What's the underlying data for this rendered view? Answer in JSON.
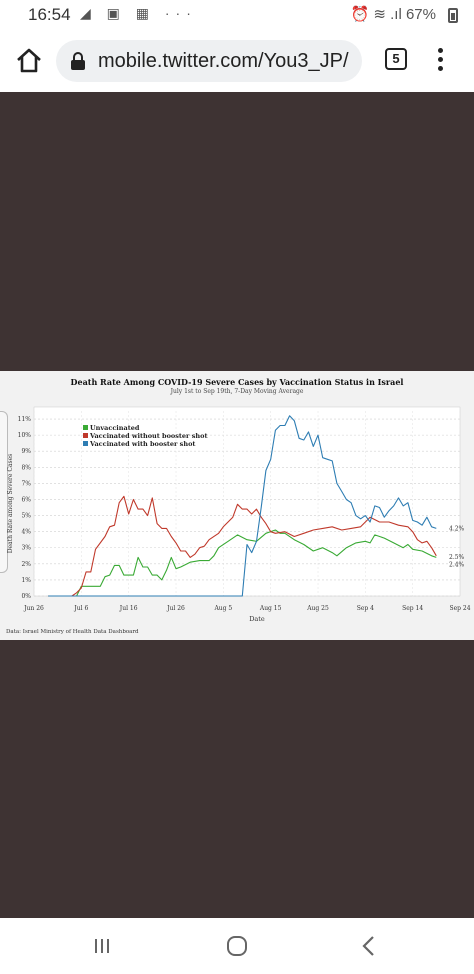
{
  "status_bar": {
    "time": "16:54",
    "left_icons": "◢ ▣ ▦ ···",
    "right_indicators": "⏰ ≋ .ıl",
    "battery": "67%"
  },
  "browser": {
    "url": "mobile.twitter.com/You3_JP/",
    "tab_count": "5"
  },
  "tweet_image": {
    "chart_data": {
      "type": "line",
      "title": "Death Rate Among COVID-19 Severe Cases by Vaccination Status in Israel",
      "subtitle": "July 1st to Sep 19th, 7-Day Moving Average",
      "xlabel": "Date",
      "ylabel": "Death Rate among Severe Cases",
      "source": "Data: Israel Ministry of Health Data Dashboard",
      "x_ticks": [
        "Jun 26",
        "Jul 6",
        "Jul 16",
        "Jul 26",
        "Aug 5",
        "Aug 15",
        "Aug 25",
        "Sep 4",
        "Sep 14",
        "Sep 24"
      ],
      "y_ticks": [
        "0%",
        "1%",
        "2%",
        "3%",
        "4%",
        "5%",
        "6%",
        "7%",
        "8%",
        "9%",
        "10%",
        "11%"
      ],
      "ylim": [
        0,
        11.5
      ],
      "x_start": "Jun 26",
      "legend_position": "top-left",
      "end_labels": [
        "4.2%",
        "2.5%",
        "2.4%"
      ],
      "series": [
        {
          "name": "Unvaccinated",
          "color": "#3aaa35",
          "points": [
            [
              "Jun 29",
              0
            ],
            [
              "Jul 1",
              0
            ],
            [
              "Jul 3",
              0
            ],
            [
              "Jul 5",
              0
            ],
            [
              "Jul 6",
              0.6
            ],
            [
              "Jul 8",
              0.6
            ],
            [
              "Jul 10",
              0.6
            ],
            [
              "Jul 11",
              1.2
            ],
            [
              "Jul 12",
              1.3
            ],
            [
              "Jul 13",
              1.9
            ],
            [
              "Jul 14",
              1.9
            ],
            [
              "Jul 15",
              1.3
            ],
            [
              "Jul 17",
              1.3
            ],
            [
              "Jul 18",
              2.4
            ],
            [
              "Jul 19",
              1.8
            ],
            [
              "Jul 20",
              1.8
            ],
            [
              "Jul 21",
              1.3
            ],
            [
              "Jul 22",
              1.3
            ],
            [
              "Jul 23",
              1.0
            ],
            [
              "Jul 24",
              1.6
            ],
            [
              "Jul 25",
              2.4
            ],
            [
              "Jul 26",
              1.7
            ],
            [
              "Jul 27",
              1.8
            ],
            [
              "Jul 29",
              2.1
            ],
            [
              "Jul 31",
              2.2
            ],
            [
              "Aug 2",
              2.2
            ],
            [
              "Aug 3",
              2.5
            ],
            [
              "Aug 4",
              3.0
            ],
            [
              "Aug 6",
              3.4
            ],
            [
              "Aug 8",
              3.8
            ],
            [
              "Aug 10",
              3.5
            ],
            [
              "Aug 12",
              3.4
            ],
            [
              "Aug 14",
              3.9
            ],
            [
              "Aug 16",
              4.1
            ],
            [
              "Aug 17",
              3.9
            ],
            [
              "Aug 18",
              3.9
            ],
            [
              "Aug 20",
              3.5
            ],
            [
              "Aug 22",
              3.2
            ],
            [
              "Aug 24",
              2.8
            ],
            [
              "Aug 26",
              3.0
            ],
            [
              "Aug 28",
              2.7
            ],
            [
              "Aug 29",
              2.5
            ],
            [
              "Aug 31",
              3.0
            ],
            [
              "Sep 2",
              3.3
            ],
            [
              "Sep 4",
              3.4
            ],
            [
              "Sep 5",
              3.3
            ],
            [
              "Sep 6",
              3.8
            ],
            [
              "Sep 8",
              3.6
            ],
            [
              "Sep 10",
              3.3
            ],
            [
              "Sep 12",
              3.0
            ],
            [
              "Sep 13",
              3.2
            ],
            [
              "Sep 14",
              2.9
            ],
            [
              "Sep 16",
              2.8
            ],
            [
              "Sep 18",
              2.5
            ],
            [
              "Sep 19",
              2.4
            ]
          ]
        },
        {
          "name": "Vaccinated without booster shot",
          "color": "#c0392b",
          "points": [
            [
              "Jun 29",
              0
            ],
            [
              "Jul 1",
              0
            ],
            [
              "Jul 3",
              0
            ],
            [
              "Jul 4",
              0
            ],
            [
              "Jul 5",
              0.2
            ],
            [
              "Jul 6",
              0.5
            ],
            [
              "Jul 7",
              1.5
            ],
            [
              "Jul 8",
              1.5
            ],
            [
              "Jul 9",
              2.9
            ],
            [
              "Jul 11",
              3.7
            ],
            [
              "Jul 12",
              4.3
            ],
            [
              "Jul 13",
              4.4
            ],
            [
              "Jul 14",
              5.8
            ],
            [
              "Jul 15",
              6.2
            ],
            [
              "Jul 16",
              5.1
            ],
            [
              "Jul 17",
              6.0
            ],
            [
              "Jul 18",
              5.4
            ],
            [
              "Jul 19",
              5.4
            ],
            [
              "Jul 20",
              5.0
            ],
            [
              "Jul 21",
              6.1
            ],
            [
              "Jul 22",
              4.5
            ],
            [
              "Jul 23",
              4.2
            ],
            [
              "Jul 24",
              4.2
            ],
            [
              "Jul 25",
              3.7
            ],
            [
              "Jul 26",
              3.3
            ],
            [
              "Jul 27",
              2.8
            ],
            [
              "Jul 28",
              2.8
            ],
            [
              "Jul 29",
              2.4
            ],
            [
              "Jul 30",
              2.6
            ],
            [
              "Jul 31",
              3.0
            ],
            [
              "Aug 1",
              3.1
            ],
            [
              "Aug 2",
              3.5
            ],
            [
              "Aug 4",
              3.9
            ],
            [
              "Aug 5",
              4.3
            ],
            [
              "Aug 7",
              4.9
            ],
            [
              "Aug 8",
              5.7
            ],
            [
              "Aug 9",
              5.4
            ],
            [
              "Aug 10",
              5.4
            ],
            [
              "Aug 11",
              5.1
            ],
            [
              "Aug 12",
              5.4
            ],
            [
              "Aug 13",
              4.9
            ],
            [
              "Aug 14",
              4.5
            ],
            [
              "Aug 15",
              4.0
            ],
            [
              "Aug 16",
              3.9
            ],
            [
              "Aug 18",
              4.0
            ],
            [
              "Aug 20",
              3.7
            ],
            [
              "Aug 22",
              3.9
            ],
            [
              "Aug 24",
              4.1
            ],
            [
              "Aug 26",
              4.2
            ],
            [
              "Aug 28",
              4.3
            ],
            [
              "Aug 30",
              4.1
            ],
            [
              "Sep 1",
              4.2
            ],
            [
              "Sep 3",
              4.3
            ],
            [
              "Sep 5",
              4.9
            ],
            [
              "Sep 7",
              4.6
            ],
            [
              "Sep 9",
              4.6
            ],
            [
              "Sep 11",
              4.4
            ],
            [
              "Sep 13",
              4.3
            ],
            [
              "Sep 14",
              4.0
            ],
            [
              "Sep 15",
              3.5
            ],
            [
              "Sep 16",
              3.3
            ],
            [
              "Sep 17",
              3.4
            ],
            [
              "Sep 18",
              3.0
            ],
            [
              "Sep 19",
              2.5
            ]
          ]
        },
        {
          "name": "Vaccinated with booster shot",
          "color": "#2e7db3",
          "points": [
            [
              "Jun 29",
              0
            ],
            [
              "Jul 5",
              0
            ],
            [
              "Jul 15",
              0
            ],
            [
              "Jul 25",
              0
            ],
            [
              "Aug 4",
              0
            ],
            [
              "Aug 9",
              0
            ],
            [
              "Aug 10",
              3.2
            ],
            [
              "Aug 11",
              2.7
            ],
            [
              "Aug 12",
              3.4
            ],
            [
              "Aug 13",
              5.5
            ],
            [
              "Aug 14",
              7.8
            ],
            [
              "Aug 15",
              8.5
            ],
            [
              "Aug 16",
              10.3
            ],
            [
              "Aug 17",
              10.6
            ],
            [
              "Aug 18",
              10.6
            ],
            [
              "Aug 19",
              11.2
            ],
            [
              "Aug 20",
              10.9
            ],
            [
              "Aug 21",
              9.8
            ],
            [
              "Aug 22",
              9.7
            ],
            [
              "Aug 23",
              10.2
            ],
            [
              "Aug 24",
              9.3
            ],
            [
              "Aug 25",
              10.0
            ],
            [
              "Aug 26",
              8.6
            ],
            [
              "Aug 27",
              8.5
            ],
            [
              "Aug 28",
              8.4
            ],
            [
              "Aug 29",
              7.0
            ],
            [
              "Aug 30",
              6.5
            ],
            [
              "Aug 31",
              6.0
            ],
            [
              "Sep 1",
              5.8
            ],
            [
              "Sep 2",
              5.0
            ],
            [
              "Sep 3",
              4.8
            ],
            [
              "Sep 4",
              5.0
            ],
            [
              "Sep 5",
              4.6
            ],
            [
              "Sep 6",
              5.6
            ],
            [
              "Sep 7",
              5.5
            ],
            [
              "Sep 8",
              4.9
            ],
            [
              "Sep 9",
              5.3
            ],
            [
              "Sep 10",
              5.6
            ],
            [
              "Sep 11",
              6.1
            ],
            [
              "Sep 12",
              5.6
            ],
            [
              "Sep 13",
              5.8
            ],
            [
              "Sep 14",
              4.7
            ],
            [
              "Sep 15",
              4.6
            ],
            [
              "Sep 16",
              4.4
            ],
            [
              "Sep 17",
              4.9
            ],
            [
              "Sep 18",
              4.3
            ],
            [
              "Sep 19",
              4.2
            ]
          ]
        }
      ]
    }
  }
}
